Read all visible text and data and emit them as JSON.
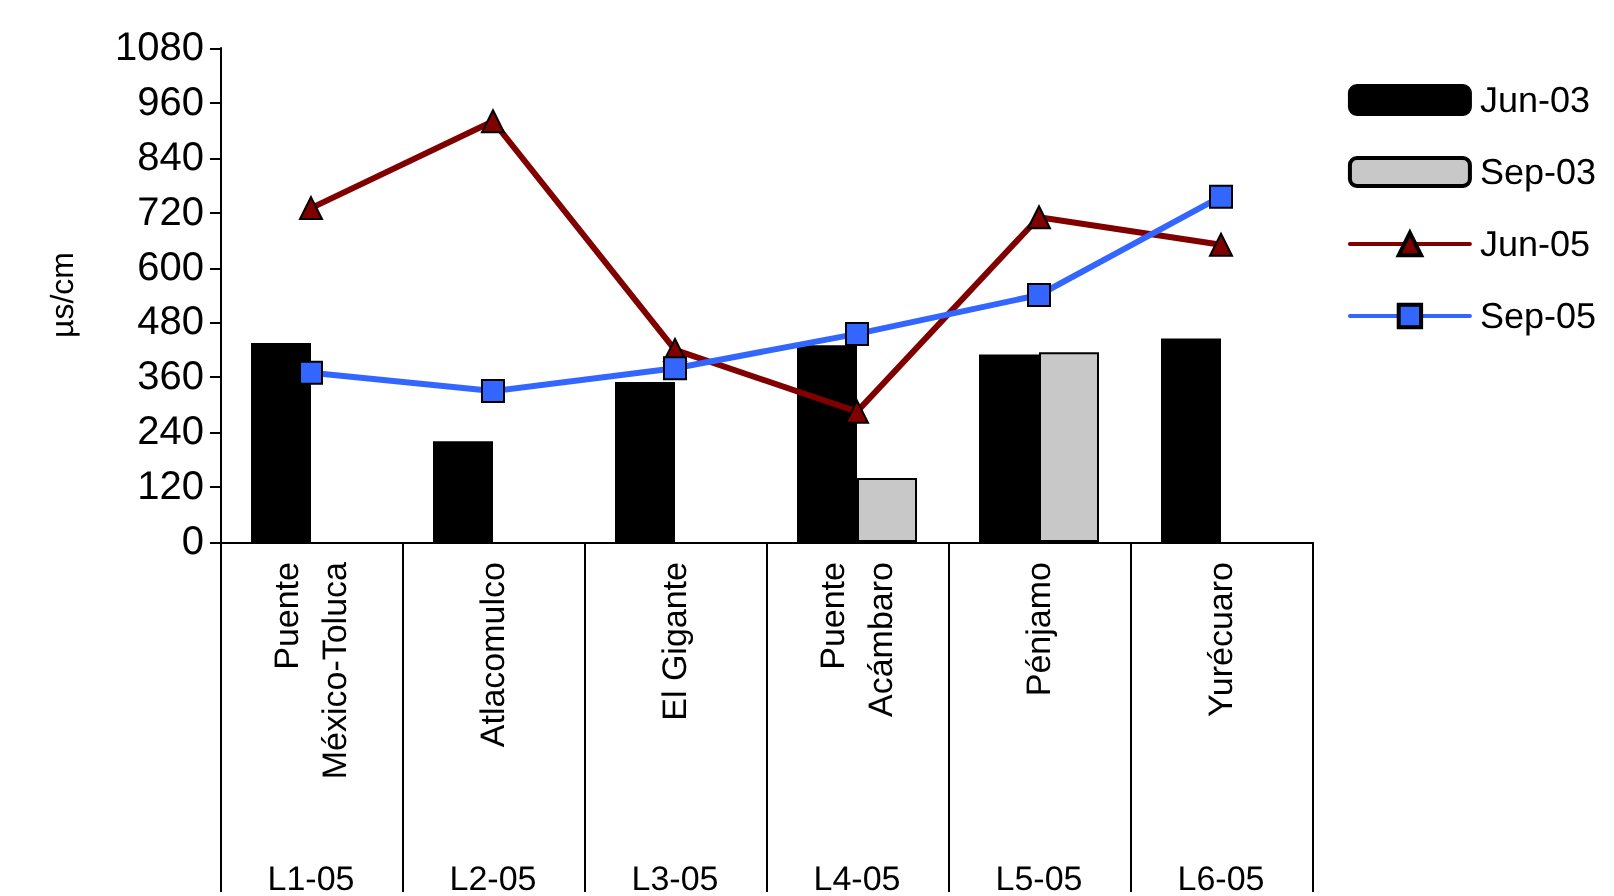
{
  "chart_data": {
    "type": "bar",
    "ylabel": "µs/cm",
    "categories": [
      "Puente México-Toluca\nL1-05",
      "Atlacomulco\nL2-05",
      "El Gigante\nL3-05",
      "Puente Acámbaro\nL4-05",
      "Pénjamo\nL5-05",
      "Yurécuaro\nL6-05"
    ],
    "series": [
      {
        "name": "Jun-03",
        "color": "#000000",
        "values": [
          435,
          220,
          350,
          430,
          410,
          445
        ]
      },
      {
        "name": "Sep-03",
        "color": "#c8c8c8",
        "values": [
          null,
          null,
          null,
          140,
          415,
          null
        ]
      },
      {
        "name": "Jun-05",
        "type": "line",
        "marker": "triangle",
        "color": "#800000",
        "values": [
          730,
          920,
          420,
          285,
          710,
          650
        ]
      },
      {
        "name": "Sep-05",
        "type": "line",
        "marker": "square",
        "color": "#3366ff",
        "values": [
          370,
          330,
          380,
          455,
          540,
          755
        ]
      }
    ],
    "ylim": [
      0,
      1080
    ],
    "yticks": [
      0,
      120,
      240,
      360,
      480,
      600,
      720,
      840,
      960,
      1080
    ],
    "grid": false,
    "legend": "right",
    "line_style": "solid"
  }
}
